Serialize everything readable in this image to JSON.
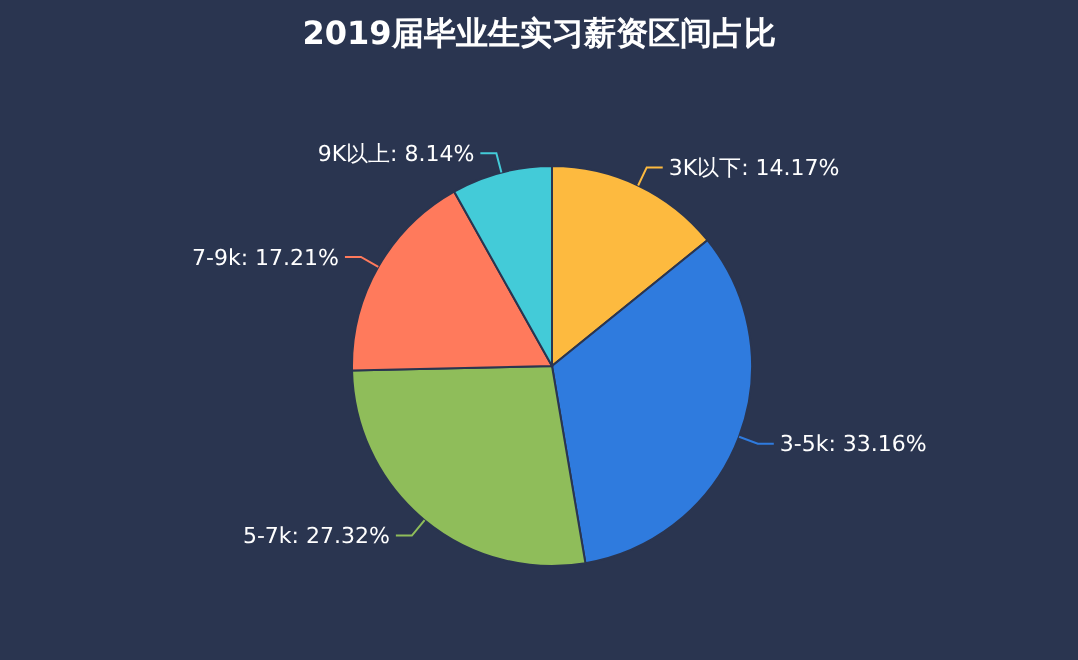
{
  "chart_data": {
    "type": "pie",
    "title": "2019届毕业生实习薪资区间占比",
    "categories": [
      "3K以下",
      "3-5k",
      "5-7k",
      "7-9k",
      "9K以上"
    ],
    "values": [
      14.17,
      33.16,
      27.32,
      17.21,
      8.14
    ],
    "value_labels": [
      "14.17%",
      "33.16%",
      "27.32%",
      "17.21%",
      "8.14%"
    ],
    "colors": [
      "#fdba3f",
      "#2f7bde",
      "#8fbd5a",
      "#ff7a5c",
      "#43cbd8"
    ]
  }
}
